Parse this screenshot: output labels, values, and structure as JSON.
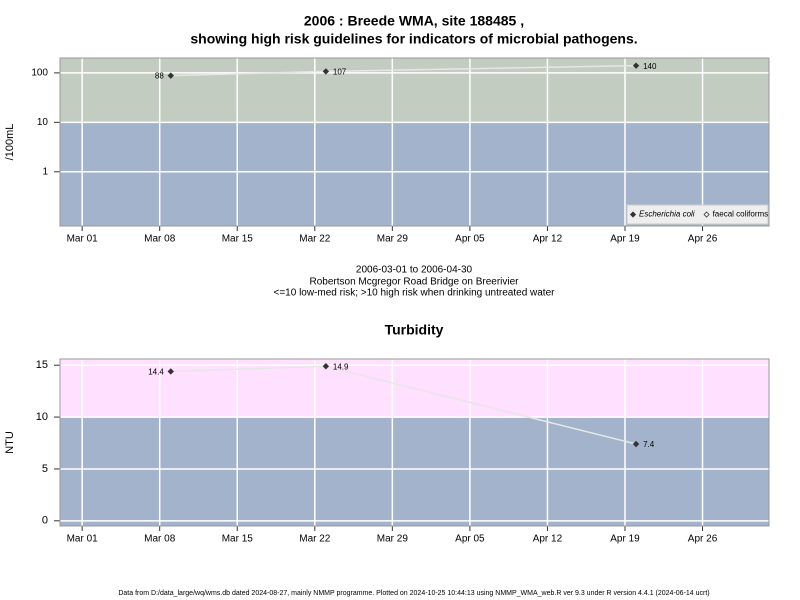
{
  "chart_data": [
    {
      "type": "line",
      "log": true,
      "title": [
        "2006 : Breede WMA, site 188485 ,",
        "showing high risk guidelines for indicators of microbial pathogens."
      ],
      "ylabel": "/100mL",
      "x": [
        "2006-03-09",
        "2006-03-23",
        "2006-04-20"
      ],
      "xlim": [
        "2006-02-27",
        "2006-05-02"
      ],
      "xticks": [
        {
          "value": "2006-03-01",
          "label": "Mar 01"
        },
        {
          "value": "2006-03-08",
          "label": "Mar 08"
        },
        {
          "value": "2006-03-15",
          "label": "Mar 15"
        },
        {
          "value": "2006-03-22",
          "label": "Mar 22"
        },
        {
          "value": "2006-03-29",
          "label": "Mar 29"
        },
        {
          "value": "2006-04-05",
          "label": "Apr 05"
        },
        {
          "value": "2006-04-12",
          "label": "Apr 12"
        },
        {
          "value": "2006-04-19",
          "label": "Apr 19"
        },
        {
          "value": "2006-04-26",
          "label": "Apr 26"
        }
      ],
      "ylim": [
        0.08,
        200
      ],
      "yticks": [
        1,
        10,
        100
      ],
      "threshold": 10,
      "colors": {
        "above": "#c3ccc0",
        "below": "#a3b3cc"
      },
      "grid": true,
      "legend": "bottom-right",
      "series": [
        {
          "name": "Escherichia coli",
          "color": "#333333",
          "values": [
            88,
            107,
            140
          ]
        },
        {
          "name": "faecal coliforms",
          "color": "#333333",
          "values": [
            null,
            null,
            null
          ]
        }
      ]
    },
    {
      "type": "line",
      "log": false,
      "title": "Turbidity",
      "ylabel": "NTU",
      "x": [
        "2006-03-09",
        "2006-03-23",
        "2006-04-20"
      ],
      "xlim": [
        "2006-02-27",
        "2006-05-02"
      ],
      "xticks": [
        {
          "value": "2006-03-01",
          "label": "Mar 01"
        },
        {
          "value": "2006-03-08",
          "label": "Mar 08"
        },
        {
          "value": "2006-03-15",
          "label": "Mar 15"
        },
        {
          "value": "2006-03-22",
          "label": "Mar 22"
        },
        {
          "value": "2006-03-29",
          "label": "Mar 29"
        },
        {
          "value": "2006-04-05",
          "label": "Apr 05"
        },
        {
          "value": "2006-04-12",
          "label": "Apr 12"
        },
        {
          "value": "2006-04-19",
          "label": "Apr 19"
        },
        {
          "value": "2006-04-26",
          "label": "Apr 26"
        }
      ],
      "ylim": [
        -0.5,
        15.6
      ],
      "yticks": [
        0,
        5,
        10,
        15
      ],
      "threshold": 10,
      "colors": {
        "above": "#ffe0ff",
        "below": "#a3b3cc"
      },
      "grid": true,
      "series": [
        {
          "name": "Turbidity",
          "color": "#333333",
          "values": [
            14.4,
            14.9,
            7.4
          ]
        }
      ]
    }
  ],
  "caption_lines": [
    "2006-03-01 to 2006-04-30",
    "Robertson Mcgregor Road Bridge on Breerivier",
    "<=10 low-med risk; >10 high risk when drinking untreated water"
  ],
  "footer": "Data from D:/data_large/wq/wms.db dated 2024-08-27, mainly NMMP programme. Plotted on 2024-10-25 10:44:13 using NMMP_WMA_web.R ver 9.3 under R version 4.4.1 (2024-06-14 ucrt)"
}
